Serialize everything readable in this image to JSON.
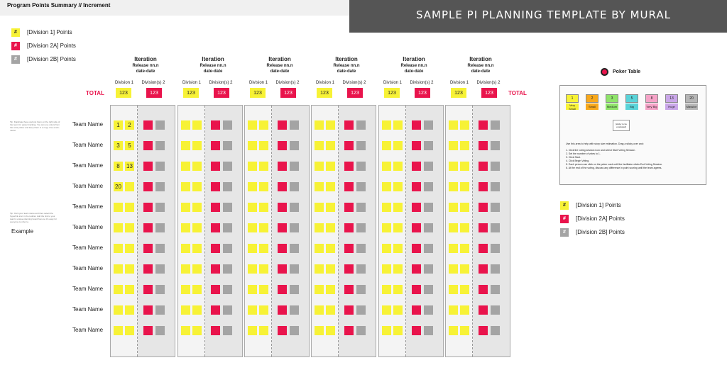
{
  "page_title": "Program Points Summary // Increment",
  "banner": "SAMPLE PI PLANNING TEMPLATE  BY MURAL",
  "legend": [
    {
      "symbol": "#",
      "label": "[Division 1] Points",
      "kind": "y"
    },
    {
      "symbol": "#",
      "label": "[Division 2A] Points",
      "kind": "r"
    },
    {
      "symbol": "#",
      "label": "[Division 2B] Points",
      "kind": "g"
    }
  ],
  "iterations": [
    {
      "title": "Iteration",
      "release": "Release nn.n",
      "dates": "date-date",
      "div1_label": "Division 1",
      "div2_label": "Division(s) 2",
      "div1_total": "123",
      "div2_total": "123"
    },
    {
      "title": "Iteration",
      "release": "Release nn.n",
      "dates": "date-date",
      "div1_label": "Division 1",
      "div2_label": "Division(s) 2",
      "div1_total": "123",
      "div2_total": "123"
    },
    {
      "title": "Iteration",
      "release": "Release nn.n",
      "dates": "date-date",
      "div1_label": "Division 1",
      "div2_label": "Division(s) 2",
      "div1_total": "123",
      "div2_total": "123"
    },
    {
      "title": "Iteration",
      "release": "Release nn.n",
      "dates": "date-date",
      "div1_label": "Division 1",
      "div2_label": "Division(s) 2",
      "div1_total": "123",
      "div2_total": "123"
    },
    {
      "title": "Iteration",
      "release": "Release nn.n",
      "dates": "date-date",
      "div1_label": "Division 1",
      "div2_label": "Division(s) 2",
      "div1_total": "123",
      "div2_total": "123"
    },
    {
      "title": "Iteration",
      "release": "Release nn.n",
      "dates": "date-date",
      "div1_label": "Division 1",
      "div2_label": "Division(s) 2",
      "div1_total": "123",
      "div2_total": "123"
    }
  ],
  "total_label": "TOTAL",
  "teams": [
    "Team Name",
    "Team Name",
    "Team Name",
    "Team Name",
    "Team Name",
    "Team Name",
    "Team Name",
    "Team Name",
    "Team Name",
    "Team Name",
    "Team Name"
  ],
  "example_points": [
    [
      "1",
      "2"
    ],
    [
      "3",
      "5"
    ],
    [
      "8",
      "13"
    ],
    [
      "20",
      ""
    ]
  ],
  "tip1": "Tip: Duplicate these and put them on the right side of the team for easier tracking. You can use colors from the color picker and keep them in a copy. Use a sub-mural.",
  "tip2": "Tip: Click your team name and then select the hyperlink icon in the toolbar. Add the link to your team's unique planning board here so it's easy for everyone to refer to.",
  "example_label": "Example",
  "poker": {
    "title": "Poker Table",
    "cards": [
      {
        "num": "1",
        "size": "Very Small",
        "color": "#f7f236"
      },
      {
        "num": "2",
        "size": "Small",
        "color": "#f7a81b"
      },
      {
        "num": "3",
        "size": "Medium",
        "color": "#8fe36a"
      },
      {
        "num": "5",
        "size": "Big",
        "color": "#5ad3d8"
      },
      {
        "num": "8",
        "size": "Very Big",
        "color": "#f5a3c7"
      },
      {
        "num": "13",
        "size": "Huge",
        "color": "#c9a6e8"
      },
      {
        "num": "20",
        "size": "Massive",
        "color": "#b5b5b5"
      }
    ],
    "sticky": "[sticky to be evaluated]",
    "intro": "Use this area to help with story size estimation. Drag a sticky over and:",
    "steps": [
      "1. Click the voting session icon and select Start Voting Session.",
      "2. Set the number of votes to 1.",
      "3. Click Start.",
      "4. Click Begin Voting.",
      "5. Each person can click on the poker card until the facilitator clicks End Voting Session.",
      "6. At the end of the voting, discuss any difference in point scoring until the team agrees."
    ]
  },
  "legend2": [
    {
      "symbol": "#",
      "label": "[Division 1] Points",
      "kind": "y"
    },
    {
      "symbol": "#",
      "label": "[Division 2A] Points",
      "kind": "r"
    },
    {
      "symbol": "#",
      "label": "[Division 2B] Points",
      "kind": "g"
    }
  ]
}
